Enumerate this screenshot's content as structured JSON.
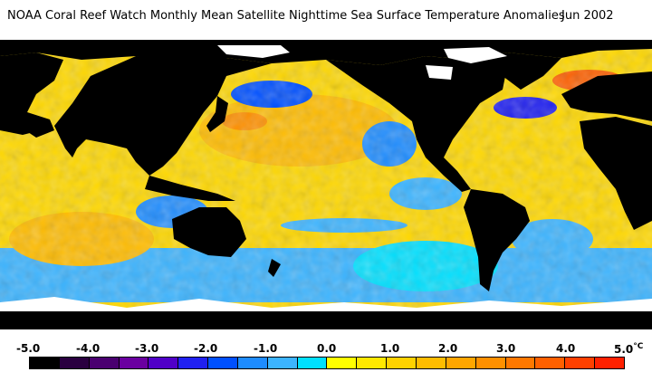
{
  "header": {
    "title": "NOAA Coral Reef Watch Monthly Mean Satellite Nighttime Sea Surface Temperature Anomalies",
    "date": "Jun 2002"
  },
  "legend": {
    "labels": [
      "-5.0",
      "-4.0",
      "-3.0",
      "-2.0",
      "-1.0",
      "0.0",
      "1.0",
      "2.0",
      "3.0",
      "4.0",
      "5.0"
    ],
    "unit": "°C",
    "colors": [
      "#000000",
      "#2a0040",
      "#4a0070",
      "#6a00a0",
      "#5000c8",
      "#2020f0",
      "#0050ff",
      "#1e8cff",
      "#3cb4ff",
      "#00e0ff",
      "#ffff00",
      "#ffe800",
      "#ffd200",
      "#ffbc00",
      "#ffa600",
      "#ff9000",
      "#ff7800",
      "#ff6000",
      "#ff4000",
      "#ff2000"
    ]
  },
  "map": {
    "land_color": "#000000",
    "ice_color": "#ffffff"
  }
}
